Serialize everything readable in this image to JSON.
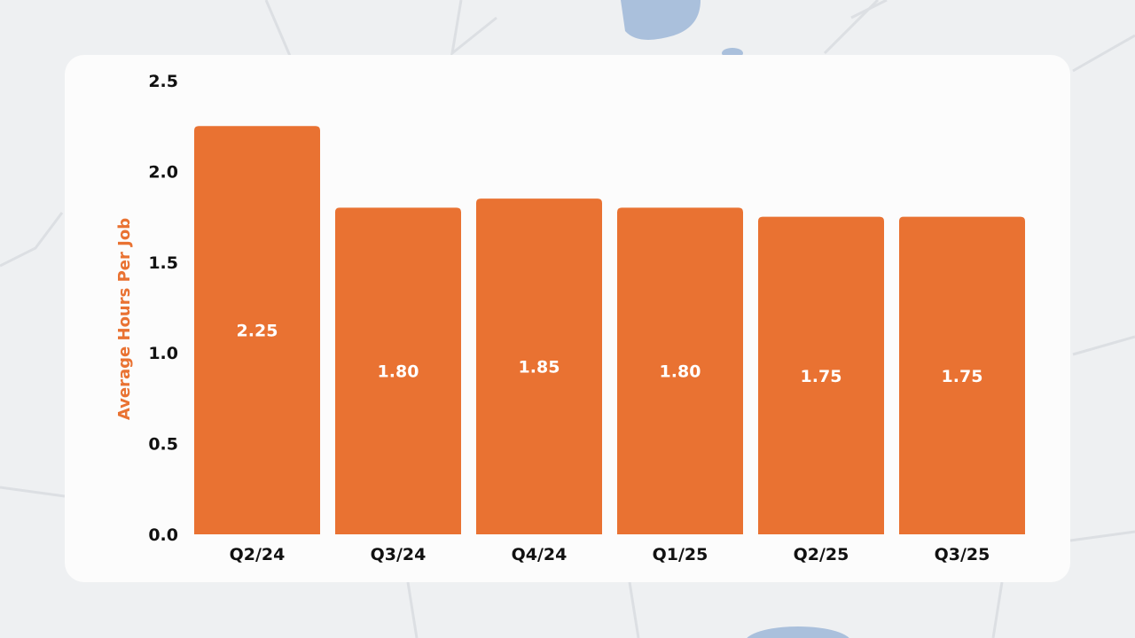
{
  "colors": {
    "bar": "#e97232",
    "bar_label": "#ffffff",
    "axis_text": "#111111",
    "ylabel": "#e97232",
    "card": "#fcfcfc",
    "background": "#eef0f2"
  },
  "chart_data": {
    "type": "bar",
    "categories": [
      "Q2/24",
      "Q3/24",
      "Q4/24",
      "Q1/25",
      "Q2/25",
      "Q3/25"
    ],
    "values": [
      2.25,
      1.8,
      1.85,
      1.8,
      1.75,
      1.75
    ],
    "data_labels": [
      "2.25",
      "1.80",
      "1.85",
      "1.80",
      "1.75",
      "1.75"
    ],
    "title": "",
    "xlabel": "",
    "ylabel": "Average Hours Per Job",
    "ylim": [
      0,
      2.5
    ],
    "yticks": [
      0,
      0.5,
      1.0,
      1.5,
      2.0,
      2.5
    ],
    "ytick_labels": [
      "0.0",
      "0.5",
      "1.0",
      "1.5",
      "2.0",
      "2.5"
    ],
    "grid": false,
    "legend": "none"
  }
}
